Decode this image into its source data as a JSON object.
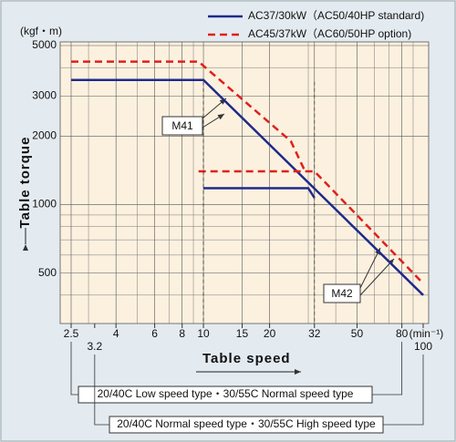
{
  "chart_data": {
    "type": "line",
    "y_unit": "(kgf・m)",
    "x_unit": "(min⁻¹)",
    "ylabel": "Table torque",
    "xlabel": "Table speed",
    "log_x": true,
    "log_y": true,
    "grid": true,
    "xlim": [
      2.5,
      100
    ],
    "ylim": [
      300,
      5000
    ],
    "xticks": [
      2.5,
      4,
      6,
      8,
      10,
      15,
      20,
      32,
      50,
      80
    ],
    "xminor": [
      3,
      5,
      7,
      9,
      30,
      40,
      60,
      70,
      90
    ],
    "yticks": [
      500,
      1000,
      2000,
      3000,
      5000
    ],
    "yminor": [
      300,
      400,
      600,
      700,
      800,
      900,
      4000
    ],
    "x2ticks": [
      3.2,
      100
    ],
    "reference_lines": [
      10,
      32
    ],
    "series": [
      {
        "name": "AC37/30kW（AC50/40HP standard)",
        "color": "#1f2a8c",
        "dash": false,
        "x": [
          2.5,
          10,
          100,
          null,
          10,
          30,
          32
        ],
        "values": [
          3530,
          3530,
          400,
          null,
          1180,
          1180,
          1070
        ]
      },
      {
        "name": "AC45/37kW（AC60/50HP option)",
        "color": "#e0201b",
        "dash": true,
        "x": [
          2.5,
          9.5,
          25,
          29,
          null,
          9.5,
          32,
          100
        ],
        "values": [
          4250,
          4250,
          1900,
          1400,
          null,
          1400,
          1400,
          450
        ]
      }
    ],
    "annotations": [
      "M41",
      "M42"
    ],
    "brackets": [
      "20/40C Low speed type・30/55C Normal speed type",
      "20/40C Normal speed type・30/55C High speed type"
    ]
  }
}
